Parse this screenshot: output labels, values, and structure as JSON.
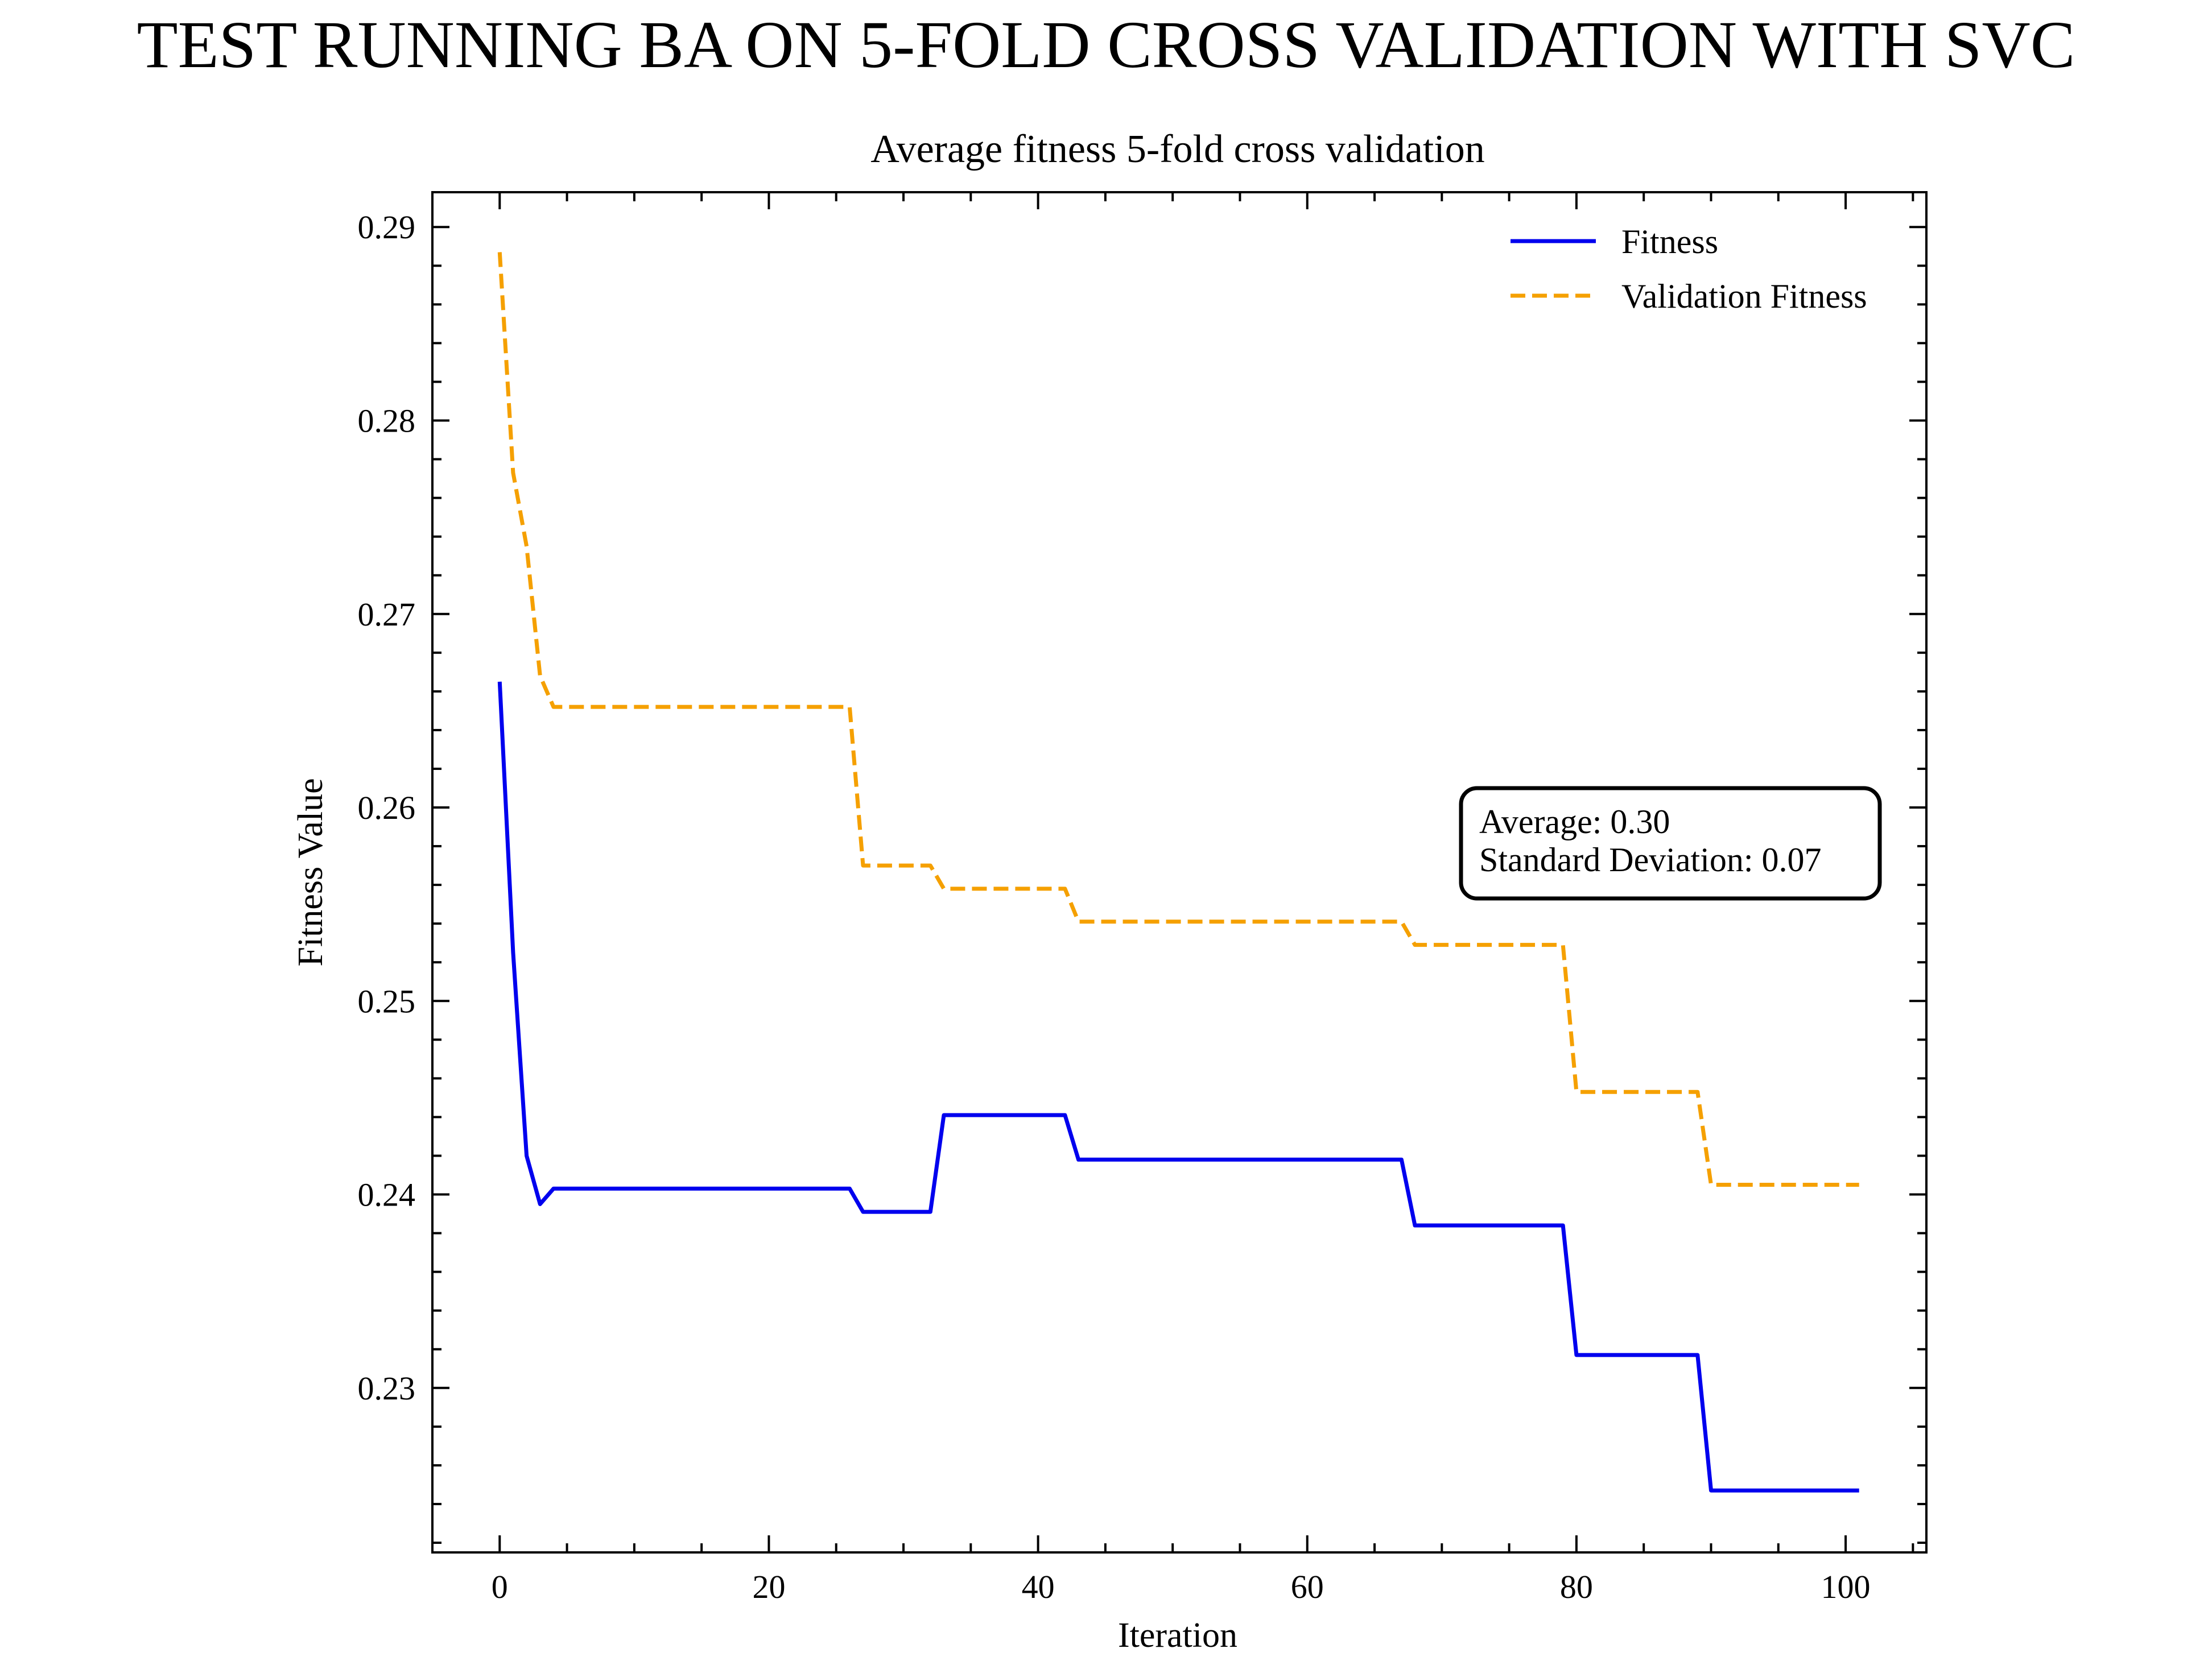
{
  "chart_data": {
    "type": "line",
    "suptitle": "TEST RUNNING BA ON 5-FOLD CROSS VALIDATION WITH SVC",
    "title": "Average fitness 5-fold cross validation",
    "xlabel": "Iteration",
    "ylabel": "Fitness Value",
    "xlim": [
      -5,
      106
    ],
    "ylim": [
      0.2215,
      0.2918
    ],
    "xticks": [
      0,
      20,
      40,
      60,
      80,
      100
    ],
    "xtick_labels": [
      "0",
      "20",
      "40",
      "60",
      "80",
      "100"
    ],
    "yticks": [
      0.23,
      0.24,
      0.25,
      0.26,
      0.27,
      0.28,
      0.29
    ],
    "ytick_labels": [
      "0.23",
      "0.24",
      "0.25",
      "0.26",
      "0.27",
      "0.28",
      "0.29"
    ],
    "legend_position": "top-right",
    "series": [
      {
        "name": "Fitness",
        "color": "#0000ee",
        "style": "solid",
        "x": [
          0,
          1,
          2,
          3,
          4,
          26,
          27,
          32,
          33,
          42,
          43,
          67,
          68,
          79,
          80,
          89,
          90,
          101
        ],
        "y": [
          0.2665,
          0.2525,
          0.242,
          0.2395,
          0.2403,
          0.2403,
          0.2391,
          0.2391,
          0.2441,
          0.2441,
          0.2418,
          0.2418,
          0.2384,
          0.2384,
          0.2317,
          0.2317,
          0.2247,
          0.2247
        ]
      },
      {
        "name": "Validation Fitness",
        "color": "#f5a000",
        "style": "dashed",
        "x": [
          0,
          1,
          2,
          3,
          4,
          26,
          27,
          32,
          33,
          42,
          43,
          67,
          68,
          79,
          80,
          89,
          90,
          101
        ],
        "y": [
          0.2887,
          0.2773,
          0.2735,
          0.2668,
          0.2652,
          0.2652,
          0.257,
          0.257,
          0.2558,
          0.2558,
          0.2541,
          0.2541,
          0.2529,
          0.2529,
          0.2453,
          0.2453,
          0.2405,
          0.2405
        ]
      }
    ],
    "annotation": {
      "lines": [
        "Average: 0.30",
        "Standard Deviation: 0.07"
      ]
    }
  }
}
